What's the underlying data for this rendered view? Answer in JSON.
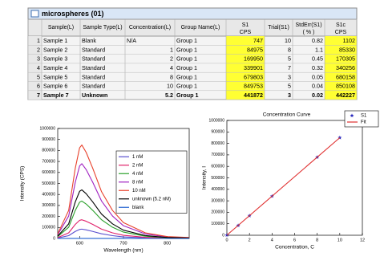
{
  "window": {
    "title": "microspheres (01)"
  },
  "table": {
    "columns": [
      {
        "name": "Sample(L)"
      },
      {
        "name": "Sample Type(L)"
      },
      {
        "name": "Concentration(L)"
      },
      {
        "name": "Group Name(L)"
      },
      {
        "name": "S1",
        "unit": "CPS"
      },
      {
        "name": "Trial(S1)"
      },
      {
        "name": "StdErr(S1)",
        "unit": "( % )"
      },
      {
        "name": "S1c",
        "unit": "CPS"
      }
    ],
    "rows": [
      [
        1,
        "Sample 1",
        "Blank",
        "N/A",
        "Group 1",
        747,
        10,
        0.82,
        1102
      ],
      [
        2,
        "Sample 2",
        "Standard",
        1,
        "Group 1",
        84975,
        8,
        1.1,
        85330
      ],
      [
        3,
        "Sample 3",
        "Standard",
        2,
        "Group 1",
        169950,
        5,
        0.45,
        170305
      ],
      [
        4,
        "Sample 4",
        "Standard",
        4,
        "Group 1",
        339901,
        7,
        0.32,
        340256
      ],
      [
        5,
        "Sample 5",
        "Standard",
        8,
        "Group 1",
        679803,
        3,
        0.05,
        680158
      ],
      [
        6,
        "Sample 6",
        "Standard",
        10,
        "Group 1",
        849753,
        5,
        0.04,
        850108
      ],
      [
        7,
        "Sample 7",
        "Unknown",
        5.2,
        "Group 1",
        441872,
        3,
        0.02,
        442227
      ]
    ],
    "highlight_columns": [
      5,
      8
    ],
    "highlight_color": "#ffff33",
    "bold_rows": [
      7
    ]
  },
  "chart_data": [
    {
      "type": "line",
      "xlabel": "Wavelength (nm)",
      "ylabel": "Intensity (CPS)",
      "x": [
        550,
        575,
        590,
        600,
        605,
        615,
        630,
        650,
        675,
        700,
        750,
        800,
        850
      ],
      "xlim": [
        550,
        850
      ],
      "xticks": [
        600,
        700,
        800
      ],
      "ylim": [
        0,
        1000000
      ],
      "yticks": [
        0,
        100000,
        200000,
        300000,
        400000,
        500000,
        600000,
        700000,
        800000,
        900000,
        1000000
      ],
      "legend": "upper right",
      "series": [
        {
          "name": "1 nM",
          "color": "#5a4fcf",
          "values": [
            4250,
            25500,
            63750,
            82450,
            85000,
            78200,
            63750,
            42500,
            25500,
            14450,
            5100,
            1700,
            850
          ]
        },
        {
          "name": "2 nM",
          "color": "#e0206a",
          "values": [
            8500,
            51000,
            127500,
            164900,
            170000,
            156400,
            127500,
            85000,
            51000,
            28900,
            10200,
            3400,
            1700
          ]
        },
        {
          "name": "4 nM",
          "color": "#2aa02a",
          "values": [
            17000,
            102000,
            255000,
            329800,
            340000,
            312800,
            255000,
            170000,
            102000,
            57800,
            20400,
            6800,
            3400
          ]
        },
        {
          "name": "8 nM",
          "color": "#a020c0",
          "values": [
            34000,
            204000,
            510000,
            659600,
            680000,
            625600,
            510000,
            340000,
            204000,
            115600,
            40800,
            13600,
            6800
          ]
        },
        {
          "name": "10 nM",
          "color": "#e8402a",
          "values": [
            42500,
            255000,
            637500,
            824500,
            850000,
            782000,
            637500,
            425000,
            255000,
            144500,
            51000,
            17000,
            8500
          ]
        },
        {
          "name": "unknown (5.2 nM)",
          "color": "#000000",
          "values": [
            22100,
            132600,
            331500,
            428740,
            442000,
            406640,
            331500,
            221000,
            132600,
            75140,
            26520,
            8840,
            4420
          ]
        },
        {
          "name": "blank",
          "color": "#2060d0",
          "values": [
            100,
            200,
            500,
            700,
            750,
            700,
            600,
            400,
            250,
            150,
            50,
            20,
            10
          ]
        }
      ]
    },
    {
      "type": "scatter",
      "title": "Concentration Curve",
      "xlabel": "Concentration, C",
      "ylabel": "Intensity, I",
      "xlim": [
        0,
        12
      ],
      "xticks": [
        0,
        2,
        4,
        6,
        8,
        10,
        12
      ],
      "ylim": [
        0,
        1000000
      ],
      "yticks": [
        0,
        100000,
        200000,
        300000,
        400000,
        500000,
        600000,
        700000,
        800000,
        900000,
        1000000
      ],
      "legend": "upper right",
      "series": [
        {
          "name": "S1",
          "color": "#2b2bbf",
          "marker": "star",
          "x": [
            0,
            1,
            2,
            4,
            8,
            10
          ],
          "values": [
            747,
            84975,
            169950,
            339901,
            679803,
            849753
          ]
        },
        {
          "name": "Fit",
          "color": "#e03030",
          "line": true,
          "x": [
            0,
            10
          ],
          "values": [
            747,
            849753
          ]
        }
      ]
    }
  ]
}
